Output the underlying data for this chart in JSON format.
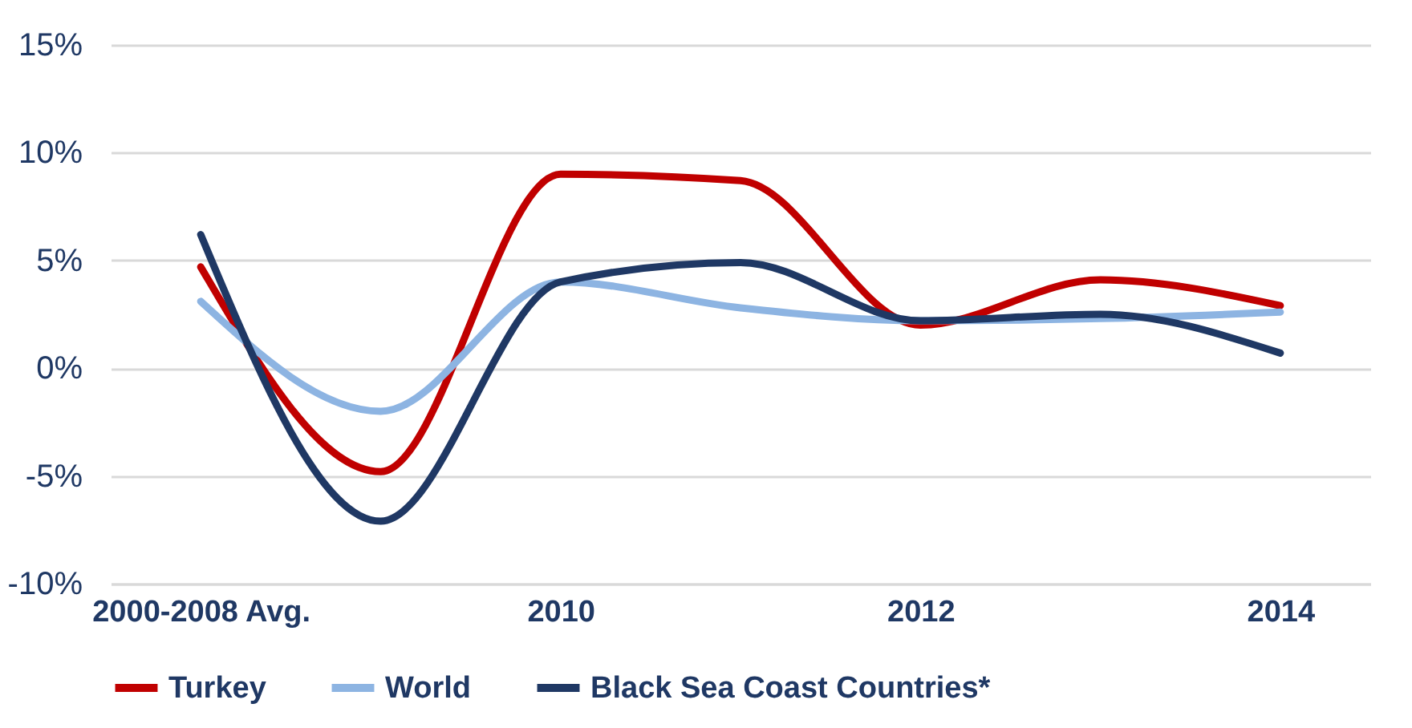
{
  "chart_data": {
    "type": "line",
    "categories": [
      "2000-2008 Avg.",
      null,
      "2010",
      null,
      "2012",
      null,
      "2014"
    ],
    "series": [
      {
        "name": "Turkey",
        "color": "#c00000",
        "values": [
          4.7,
          -4.8,
          9.0,
          8.7,
          2.0,
          4.1,
          2.9
        ]
      },
      {
        "name": "World",
        "color": "#8db4e2",
        "values": [
          3.1,
          -2.0,
          4.0,
          2.8,
          2.2,
          2.3,
          2.6
        ]
      },
      {
        "name": "Black Sea Coast Countries*",
        "color": "#1f3864",
        "values": [
          6.2,
          -7.1,
          4.0,
          4.9,
          2.2,
          2.5,
          0.7
        ]
      }
    ],
    "ylim": [
      -10,
      15
    ],
    "yticks": [
      {
        "value": -10,
        "label": "-10%"
      },
      {
        "value": -5,
        "label": "-5%"
      },
      {
        "value": 0,
        "label": "0%"
      },
      {
        "value": 5,
        "label": "5%"
      },
      {
        "value": 10,
        "label": "10%"
      },
      {
        "value": 15,
        "label": "15%"
      }
    ],
    "grid": "y",
    "legend": "bottom",
    "marker": "none",
    "line_style": "solid"
  }
}
